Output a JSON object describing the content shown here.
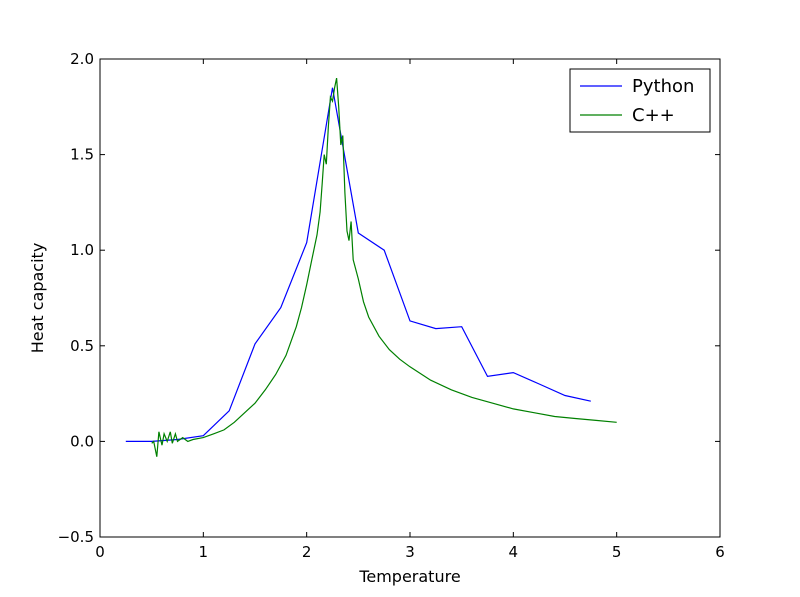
{
  "chart_data": {
    "type": "line",
    "xlabel": "Temperature",
    "ylabel": "Heat capacity",
    "xlim": [
      0,
      6
    ],
    "ylim": [
      -0.5,
      2.0
    ],
    "xticks": [
      "0",
      "1",
      "2",
      "3",
      "4",
      "5",
      "6"
    ],
    "yticks": [
      "−0.5",
      "0.0",
      "0.5",
      "1.0",
      "1.5",
      "2.0"
    ],
    "grid": false,
    "legend_position": "top-right",
    "series": [
      {
        "name": "Python",
        "color": "#0000ff",
        "x": [
          0.25,
          0.5,
          0.75,
          1.0,
          1.25,
          1.5,
          1.75,
          2.0,
          2.25,
          2.5,
          2.75,
          3.0,
          3.25,
          3.5,
          3.75,
          4.0,
          4.25,
          4.5,
          4.75
        ],
        "y": [
          0.0,
          0.0,
          0.01,
          0.03,
          0.16,
          0.51,
          0.7,
          1.04,
          1.85,
          1.09,
          1.0,
          0.63,
          0.59,
          0.6,
          0.34,
          0.36,
          0.3,
          0.24,
          0.21
        ]
      },
      {
        "name": "C++",
        "color": "#008000",
        "x": [
          0.5,
          0.52,
          0.55,
          0.57,
          0.6,
          0.62,
          0.65,
          0.68,
          0.7,
          0.73,
          0.75,
          0.8,
          0.85,
          0.9,
          1.0,
          1.1,
          1.2,
          1.3,
          1.4,
          1.5,
          1.6,
          1.7,
          1.8,
          1.9,
          1.95,
          2.0,
          2.05,
          2.1,
          2.13,
          2.15,
          2.17,
          2.19,
          2.21,
          2.23,
          2.25,
          2.27,
          2.29,
          2.31,
          2.33,
          2.35,
          2.37,
          2.39,
          2.41,
          2.43,
          2.45,
          2.5,
          2.55,
          2.6,
          2.7,
          2.8,
          2.9,
          3.0,
          3.2,
          3.4,
          3.6,
          3.8,
          4.0,
          4.2,
          4.4,
          4.6,
          4.8,
          5.0
        ],
        "y": [
          -0.01,
          0.0,
          -0.08,
          0.05,
          -0.02,
          0.04,
          0.0,
          0.05,
          -0.01,
          0.04,
          0.0,
          0.02,
          0.0,
          0.01,
          0.02,
          0.04,
          0.06,
          0.1,
          0.15,
          0.2,
          0.27,
          0.35,
          0.45,
          0.6,
          0.7,
          0.82,
          0.95,
          1.08,
          1.2,
          1.35,
          1.5,
          1.45,
          1.65,
          1.8,
          1.78,
          1.85,
          1.9,
          1.75,
          1.55,
          1.6,
          1.3,
          1.1,
          1.05,
          1.15,
          0.95,
          0.85,
          0.73,
          0.65,
          0.55,
          0.48,
          0.43,
          0.39,
          0.32,
          0.27,
          0.23,
          0.2,
          0.17,
          0.15,
          0.13,
          0.12,
          0.11,
          0.1
        ]
      }
    ]
  }
}
